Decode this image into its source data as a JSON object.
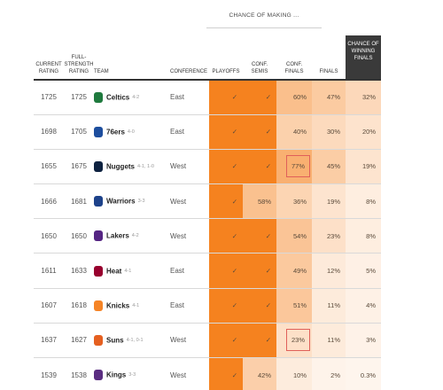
{
  "header": {
    "super_label": "CHANCE OF MAKING ...",
    "col_current": "CURRENT RATING",
    "col_full": "FULL-STRENGTH RATING",
    "col_team": "TEAM",
    "col_conf": "CONFERENCE",
    "col_playoffs": "PLAYOFFS",
    "col_semis": "CONF. SEMIS",
    "col_finals_conf": "CONF. FINALS",
    "col_finals": "FINALS",
    "col_win": "CHANCE OF WINNING FINALS"
  },
  "colors": {
    "full": "#f5821f",
    "header_dark": "#3a3a3a",
    "highlight_box": "#e0605a"
  },
  "chart_data": {
    "type": "table",
    "columns": [
      "CURRENT RATING",
      "FULL-STRENGTH RATING",
      "TEAM",
      "CONFERENCE",
      "PLAYOFFS",
      "CONF. SEMIS",
      "CONF. FINALS",
      "FINALS",
      "CHANCE OF WINNING FINALS"
    ],
    "rows": [
      {
        "current": "1725",
        "full": "1725",
        "team": "Celtics",
        "record": "4-2",
        "logo": "celtics-logo",
        "logo_color": "#1f7a3e",
        "conf": "East",
        "playoffs": "✓",
        "semis": "✓",
        "conf_finals": "60%",
        "finals": "47%",
        "win": "32%",
        "highlight": false,
        "v": [
          100,
          100,
          60,
          47,
          32
        ]
      },
      {
        "current": "1698",
        "full": "1705",
        "team": "76ers",
        "record": "4-0",
        "logo": "76ers-logo",
        "logo_color": "#1d4e9e",
        "conf": "East",
        "playoffs": "✓",
        "semis": "✓",
        "conf_finals": "40%",
        "finals": "30%",
        "win": "20%",
        "highlight": false,
        "v": [
          100,
          100,
          40,
          30,
          20
        ]
      },
      {
        "current": "1655",
        "full": "1675",
        "team": "Nuggets",
        "record": "4-1, 1-0",
        "logo": "nuggets-logo",
        "logo_color": "#0e2240",
        "conf": "West",
        "playoffs": "✓",
        "semis": "✓",
        "conf_finals": "77%",
        "finals": "45%",
        "win": "19%",
        "highlight": true,
        "v": [
          100,
          100,
          77,
          45,
          19
        ]
      },
      {
        "current": "1666",
        "full": "1681",
        "team": "Warriors",
        "record": "3-3",
        "logo": "warriors-logo",
        "logo_color": "#1d428a",
        "conf": "West",
        "playoffs": "✓",
        "semis": "58%",
        "conf_finals": "36%",
        "finals": "19%",
        "win": "8%",
        "highlight": false,
        "v": [
          100,
          58,
          36,
          19,
          8
        ]
      },
      {
        "current": "1650",
        "full": "1650",
        "team": "Lakers",
        "record": "4-2",
        "logo": "lakers-logo",
        "logo_color": "#552583",
        "conf": "West",
        "playoffs": "✓",
        "semis": "✓",
        "conf_finals": "54%",
        "finals": "23%",
        "win": "8%",
        "highlight": false,
        "v": [
          100,
          100,
          54,
          23,
          8
        ]
      },
      {
        "current": "1611",
        "full": "1633",
        "team": "Heat",
        "record": "4-1",
        "logo": "heat-logo",
        "logo_color": "#98002e",
        "conf": "East",
        "playoffs": "✓",
        "semis": "✓",
        "conf_finals": "49%",
        "finals": "12%",
        "win": "5%",
        "highlight": false,
        "v": [
          100,
          100,
          49,
          12,
          5
        ]
      },
      {
        "current": "1607",
        "full": "1618",
        "team": "Knicks",
        "record": "4-1",
        "logo": "knicks-logo",
        "logo_color": "#f58426",
        "conf": "East",
        "playoffs": "✓",
        "semis": "✓",
        "conf_finals": "51%",
        "finals": "11%",
        "win": "4%",
        "highlight": false,
        "v": [
          100,
          100,
          51,
          11,
          4
        ]
      },
      {
        "current": "1637",
        "full": "1627",
        "team": "Suns",
        "record": "4-1, 0-1",
        "logo": "suns-logo",
        "logo_color": "#e56020",
        "conf": "West",
        "playoffs": "✓",
        "semis": "✓",
        "conf_finals": "23%",
        "finals": "11%",
        "win": "3%",
        "highlight": true,
        "v": [
          100,
          100,
          23,
          11,
          3
        ]
      },
      {
        "current": "1539",
        "full": "1538",
        "team": "Kings",
        "record": "3-3",
        "logo": "kings-logo",
        "logo_color": "#5a2d81",
        "conf": "West",
        "playoffs": "✓",
        "semis": "42%",
        "conf_finals": "10%",
        "finals": "2%",
        "win": "0.3%",
        "highlight": false,
        "v": [
          100,
          42,
          10,
          2,
          0.3
        ]
      }
    ]
  }
}
